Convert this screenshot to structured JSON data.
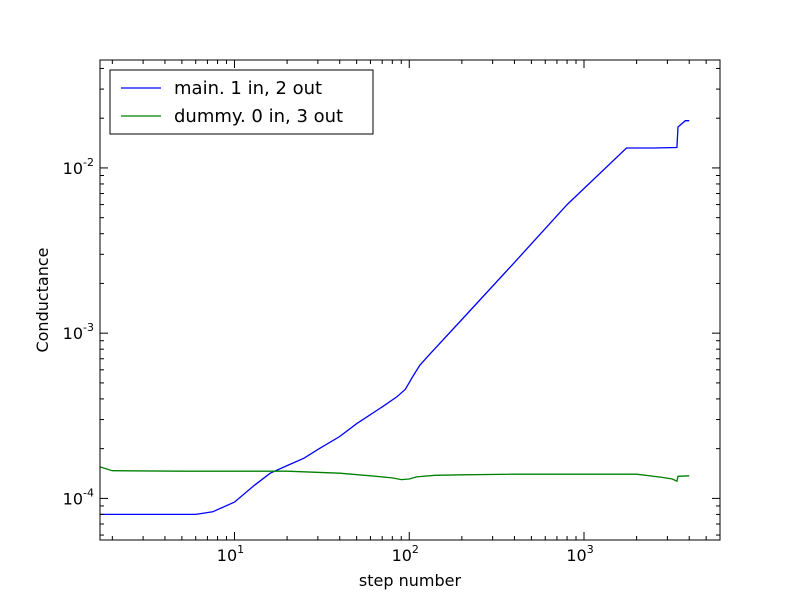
{
  "chart_data": {
    "type": "line",
    "xscale": "log",
    "yscale": "log",
    "xlim": [
      1.7,
      6000
    ],
    "ylim": [
      5.6e-05,
      0.045
    ],
    "xlabel": "step number",
    "ylabel": "Conductance",
    "grid": false,
    "legend_position": "top-left",
    "x_ticks": [
      {
        "value": 10,
        "base": "10",
        "exp": "1"
      },
      {
        "value": 100,
        "base": "10",
        "exp": "2"
      },
      {
        "value": 1000,
        "base": "10",
        "exp": "3"
      }
    ],
    "y_ticks": [
      {
        "value": 0.0001,
        "base": "10",
        "exp": "-4"
      },
      {
        "value": 0.001,
        "base": "10",
        "exp": "-3"
      },
      {
        "value": 0.01,
        "base": "10",
        "exp": "-2"
      }
    ],
    "series": [
      {
        "name": "main. 1 in, 2 out",
        "color": "#0000ff",
        "points": [
          [
            1.7,
            8e-05
          ],
          [
            3,
            8e-05
          ],
          [
            6,
            8e-05
          ],
          [
            7.5,
            8.3e-05
          ],
          [
            10,
            9.5e-05
          ],
          [
            13,
            0.00012
          ],
          [
            16,
            0.000142
          ],
          [
            20,
            0.000158
          ],
          [
            25,
            0.000175
          ],
          [
            30,
            0.000198
          ],
          [
            40,
            0.000237
          ],
          [
            50,
            0.000283
          ],
          [
            70,
            0.000358
          ],
          [
            85,
            0.000412
          ],
          [
            95,
            0.000458
          ],
          [
            105,
            0.00055
          ],
          [
            115,
            0.00064
          ],
          [
            130,
            0.00074
          ],
          [
            200,
            0.00121
          ],
          [
            400,
            0.00268
          ],
          [
            800,
            0.006
          ],
          [
            1750,
            0.0132
          ],
          [
            2500,
            0.0132
          ],
          [
            3400,
            0.0133
          ],
          [
            3450,
            0.0177
          ],
          [
            3800,
            0.0193
          ],
          [
            4000,
            0.0193
          ]
        ]
      },
      {
        "name": "dummy. 0 in, 3 out",
        "color": "#008000",
        "points": [
          [
            1.7,
            0.000155
          ],
          [
            2,
            0.000147
          ],
          [
            5,
            0.000146
          ],
          [
            10,
            0.000146
          ],
          [
            20,
            0.000146
          ],
          [
            40,
            0.000142
          ],
          [
            60,
            0.000137
          ],
          [
            80,
            0.000133
          ],
          [
            90,
            0.00013
          ],
          [
            100,
            0.000131
          ],
          [
            110,
            0.000135
          ],
          [
            140,
            0.000138
          ],
          [
            200,
            0.000139
          ],
          [
            400,
            0.00014
          ],
          [
            1000,
            0.00014
          ],
          [
            2000,
            0.00014
          ],
          [
            2800,
            0.000134
          ],
          [
            3200,
            0.000131
          ],
          [
            3400,
            0.000127
          ],
          [
            3450,
            0.000136
          ],
          [
            4000,
            0.000137
          ]
        ]
      }
    ]
  }
}
